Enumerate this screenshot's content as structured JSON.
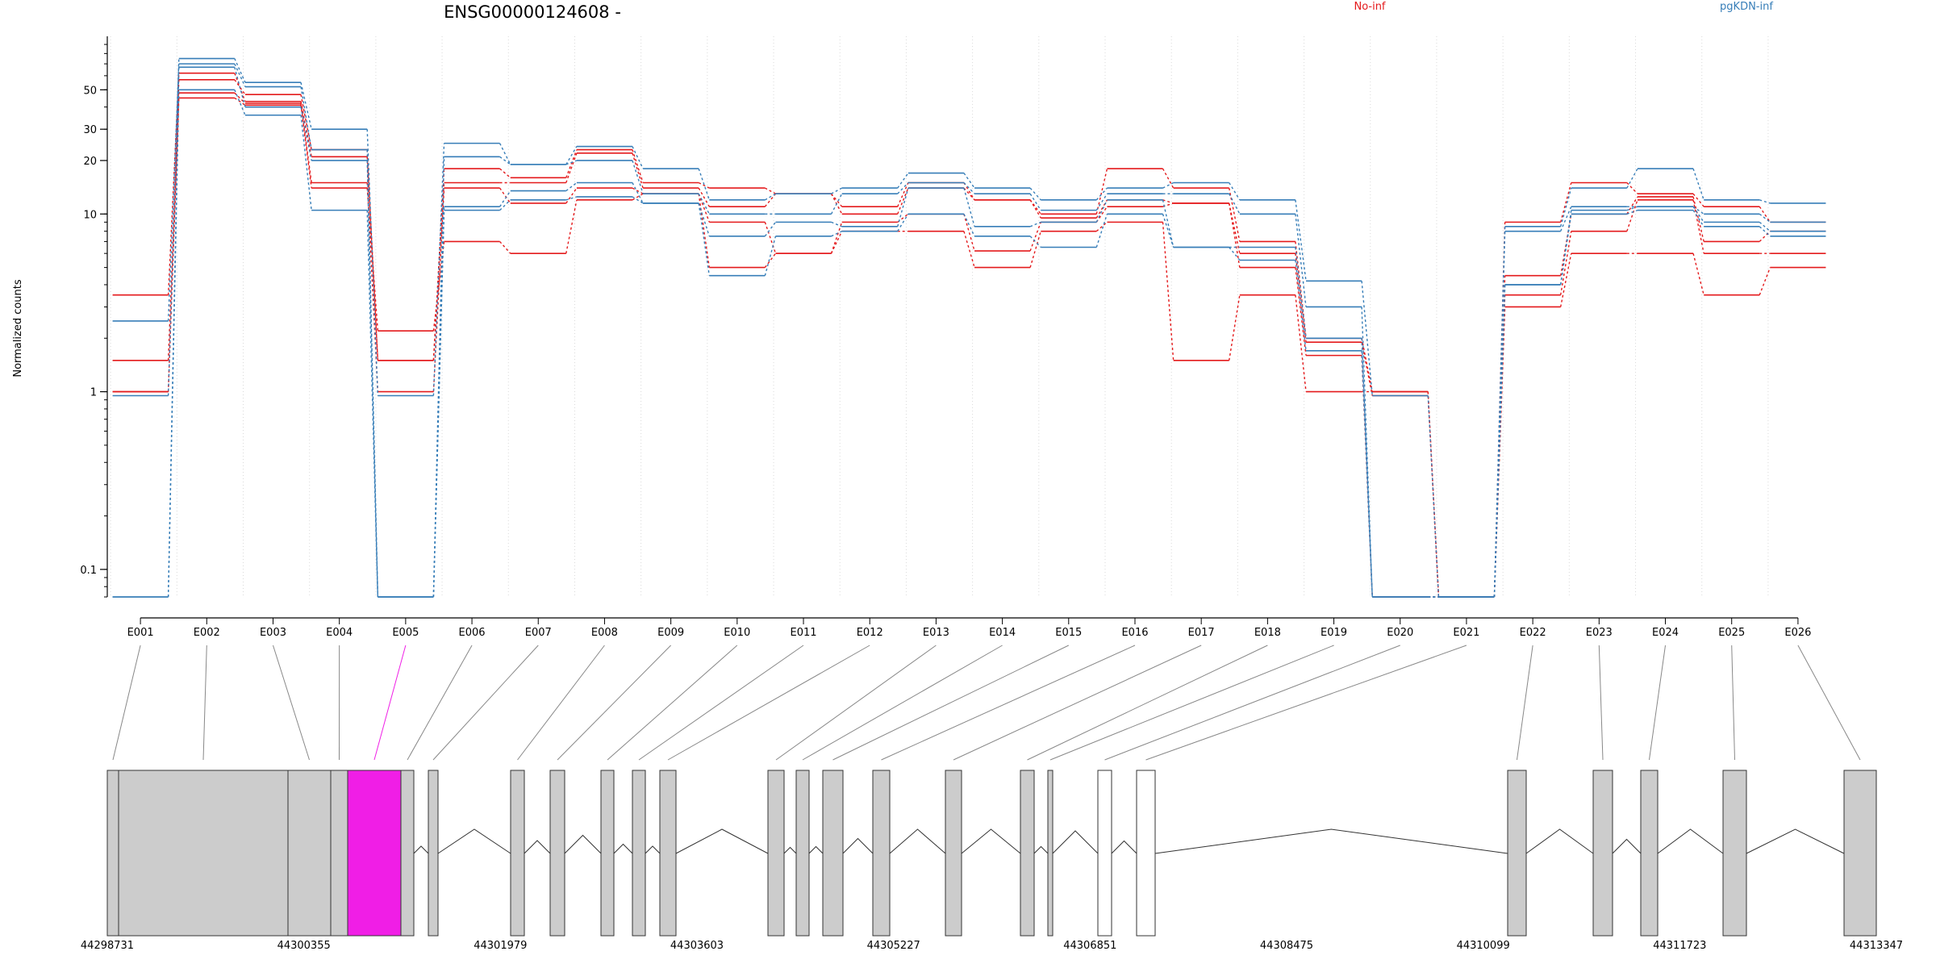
{
  "chart_data": {
    "type": "line",
    "title": "ENSG00000124608 -",
    "ylabel": "Normalized counts",
    "y_scale": "log",
    "ylim": [
      0.07,
      100
    ],
    "y_ticks": [
      0.1,
      1,
      10,
      20,
      30,
      50
    ],
    "y_tick_labels": [
      "0.1",
      "1",
      "10",
      "20",
      "30",
      "50"
    ],
    "grid": "vertical dotted lines at each exon",
    "legend": [
      {
        "name": "No-inf",
        "color": "#e41a1c"
      },
      {
        "name": "pgKDN-inf",
        "color": "#377eb8"
      }
    ],
    "legend_placement": "top",
    "categories": [
      "E001",
      "E002",
      "E003",
      "E004",
      "E005",
      "E006",
      "E007",
      "E008",
      "E009",
      "E010",
      "E011",
      "E012",
      "E013",
      "E014",
      "E015",
      "E016",
      "E017",
      "E018",
      "E019",
      "E020",
      "E021",
      "E022",
      "E023",
      "E024",
      "E025",
      "E026"
    ],
    "series": [
      {
        "group": "No-inf",
        "color": "#e41a1c",
        "values": [
          1.0,
          57,
          47,
          23,
          1.5,
          18,
          16,
          23,
          15,
          14,
          13,
          11,
          15,
          12,
          10,
          18,
          14,
          7,
          2.0,
          1.0,
          0.07,
          9,
          15,
          13,
          11,
          9
        ]
      },
      {
        "group": "No-inf",
        "color": "#e41a1c",
        "values": [
          3.5,
          62,
          43,
          21,
          1.5,
          15,
          15,
          22,
          14,
          11,
          13,
          10,
          14,
          12,
          9.5,
          12,
          11.5,
          6,
          1.9,
          0.95,
          0.07,
          4.5,
          10,
          12.5,
          7,
          8
        ]
      },
      {
        "group": "No-inf",
        "color": "#e41a1c",
        "values": [
          1.5,
          48,
          42,
          15,
          1.0,
          14,
          11.5,
          14,
          13,
          9,
          6,
          9,
          10,
          6.2,
          9,
          11,
          11.5,
          5,
          1.6,
          0.07,
          0.07,
          3.5,
          8,
          12,
          6,
          6
        ]
      },
      {
        "group": "No-inf",
        "color": "#e41a1c",
        "values": [
          1.0,
          45,
          41,
          14,
          2.2,
          7,
          6,
          12,
          13,
          5,
          6,
          8,
          8,
          5,
          8,
          9,
          1.5,
          3.5,
          1.0,
          1.0,
          0.07,
          3.0,
          6,
          6,
          3.5,
          5
        ]
      },
      {
        "group": "pgKDN-inf",
        "color": "#377eb8",
        "values": [
          0.95,
          75,
          55,
          30,
          0.95,
          25,
          19,
          24,
          18,
          12,
          13,
          14,
          17,
          14,
          12,
          14,
          15,
          12,
          4.2,
          0.95,
          0.07,
          8.5,
          14,
          18,
          12,
          11.5
        ]
      },
      {
        "group": "pgKDN-inf",
        "color": "#377eb8",
        "values": [
          2.5,
          70,
          52,
          23,
          0.07,
          21,
          19,
          20,
          13,
          10,
          10,
          13,
          15,
          13,
          10.5,
          13,
          13,
          10,
          3.0,
          0.07,
          0.07,
          8,
          11,
          11,
          10,
          9
        ]
      },
      {
        "group": "pgKDN-inf",
        "color": "#377eb8",
        "values": [
          0.07,
          67,
          40,
          20,
          0.07,
          11,
          13.5,
          15,
          11.5,
          7.5,
          9,
          8.5,
          14,
          8.5,
          9,
          12,
          6.5,
          6.5,
          2.0,
          0.07,
          0.07,
          4.0,
          10.5,
          11,
          9,
          8
        ]
      },
      {
        "group": "pgKDN-inf",
        "color": "#377eb8",
        "values": [
          0.07,
          50,
          36,
          10.5,
          0.07,
          10.5,
          12,
          12.5,
          11.5,
          4.5,
          7.5,
          8,
          10,
          7.5,
          6.5,
          10,
          6.5,
          5.5,
          1.7,
          0.07,
          0.07,
          4.0,
          10,
          10.5,
          8.5,
          7.5
        ]
      }
    ],
    "highlighted_exon": "E005",
    "genomic_axis_labels": [
      "44298731",
      "44300355",
      "44301979",
      "44303603",
      "44305227",
      "44306851",
      "44308475",
      "44310099",
      "44311723",
      "44313347"
    ]
  },
  "colors": {
    "no_inf": "#e41a1c",
    "pgkdn_inf": "#377eb8",
    "exon_fill": "#cccccc",
    "highlight_fill": "#f01ee6"
  }
}
